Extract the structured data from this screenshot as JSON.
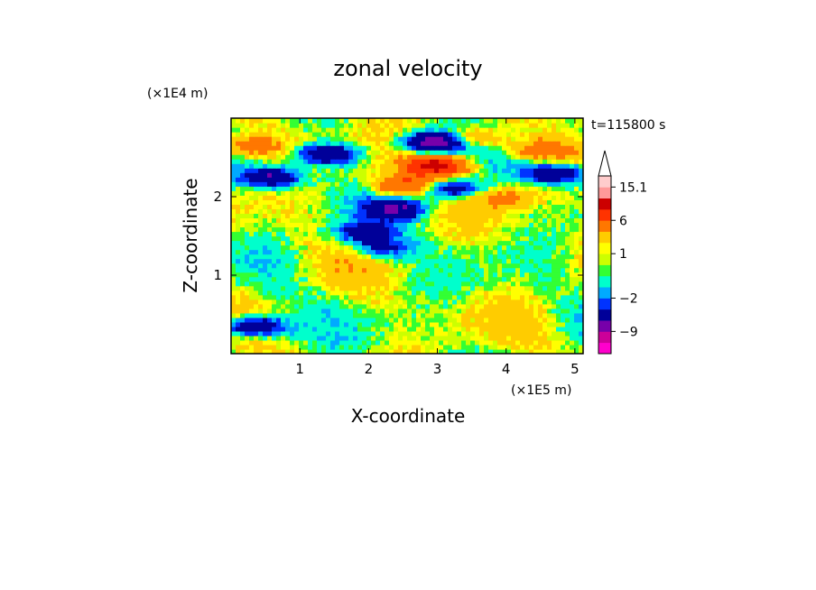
{
  "chart_data": {
    "type": "heatmap",
    "title": "zonal velocity",
    "xlabel": "X-coordinate",
    "ylabel": "Z-coordinate",
    "x_scale_label": "(×1E5 m)",
    "y_scale_label": "(×1E4 m)",
    "time_label": "t=115800 s",
    "xlim": [
      0,
      5.12
    ],
    "ylim": [
      0,
      3.0
    ],
    "x_ticks": [
      "1",
      "2",
      "3",
      "4",
      "5"
    ],
    "y_ticks": [
      "1",
      "2"
    ],
    "colorbar": {
      "levels": [
        -15,
        -12,
        -9,
        -6,
        -3,
        -2,
        -1,
        0,
        0.5,
        1,
        1.5,
        3,
        6,
        9,
        12,
        15.1
      ],
      "colors": [
        "#ff00cc",
        "#cc0099",
        "#7700aa",
        "#000099",
        "#0033ff",
        "#00aaff",
        "#00ffcc",
        "#33ff33",
        "#ccff00",
        "#ffff00",
        "#ffcc00",
        "#ff7700",
        "#ff3300",
        "#cc0000",
        "#ff9999",
        "#ffcccc"
      ],
      "tick_labels": [
        "15.1",
        "6",
        "1",
        "−2",
        "−9"
      ],
      "extend": "max"
    },
    "features": [
      {
        "x": 0.6,
        "z": 2.25,
        "value": -7
      },
      {
        "x": 1.4,
        "z": 2.55,
        "value": -7
      },
      {
        "x": 2.4,
        "z": 1.85,
        "value": -6
      },
      {
        "x": 1.9,
        "z": 1.55,
        "value": -5
      },
      {
        "x": 3.2,
        "z": 2.1,
        "value": -6
      },
      {
        "x": 2.95,
        "z": 2.7,
        "value": -10
      },
      {
        "x": 4.7,
        "z": 2.3,
        "value": -7
      },
      {
        "x": 2.2,
        "z": 1.35,
        "value": -4
      },
      {
        "x": 3.0,
        "z": 2.4,
        "value": 10
      },
      {
        "x": 2.5,
        "z": 2.15,
        "value": 6
      },
      {
        "x": 0.3,
        "z": 2.65,
        "value": 5
      },
      {
        "x": 0.35,
        "z": 0.35,
        "value": -8
      },
      {
        "x": 3.5,
        "z": 2.75,
        "value": 5
      },
      {
        "x": 4.5,
        "z": 2.6,
        "value": 4
      },
      {
        "x": 4.0,
        "z": 2.0,
        "value": 3
      }
    ]
  }
}
